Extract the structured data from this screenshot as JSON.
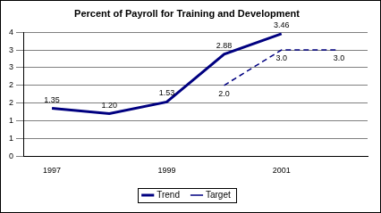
{
  "chart_data": {
    "type": "line",
    "title": "Percent of Payroll for Training and Development",
    "categories": [
      "1997",
      null,
      "1999",
      null,
      "2001",
      null
    ],
    "series": [
      {
        "name": "Trend",
        "color": "#000080",
        "line_style": "solid",
        "values": [
          1.35,
          1.2,
          1.53,
          2.88,
          3.46,
          null
        ],
        "value_labels": [
          "1.35",
          "1.20",
          "1.53",
          "2.88",
          "3.46",
          null
        ]
      },
      {
        "name": "Target",
        "color": "#000080",
        "line_style": "dashed",
        "values": [
          null,
          null,
          null,
          2.0,
          3.0,
          3.0
        ],
        "value_labels": [
          null,
          null,
          null,
          "2.0",
          "3.0",
          "3.0"
        ]
      }
    ],
    "ylim": [
      0,
      3.5
    ],
    "yticks": [
      0,
      {
        "value": 0.5,
        "label": "1"
      },
      1,
      {
        "value": 1.5,
        "label": "2"
      },
      2,
      {
        "value": 2.5,
        "label": "3"
      },
      3,
      {
        "value": 3.5,
        "label": "4"
      }
    ],
    "grid": true,
    "legend": "bottom",
    "data_labels": true
  }
}
